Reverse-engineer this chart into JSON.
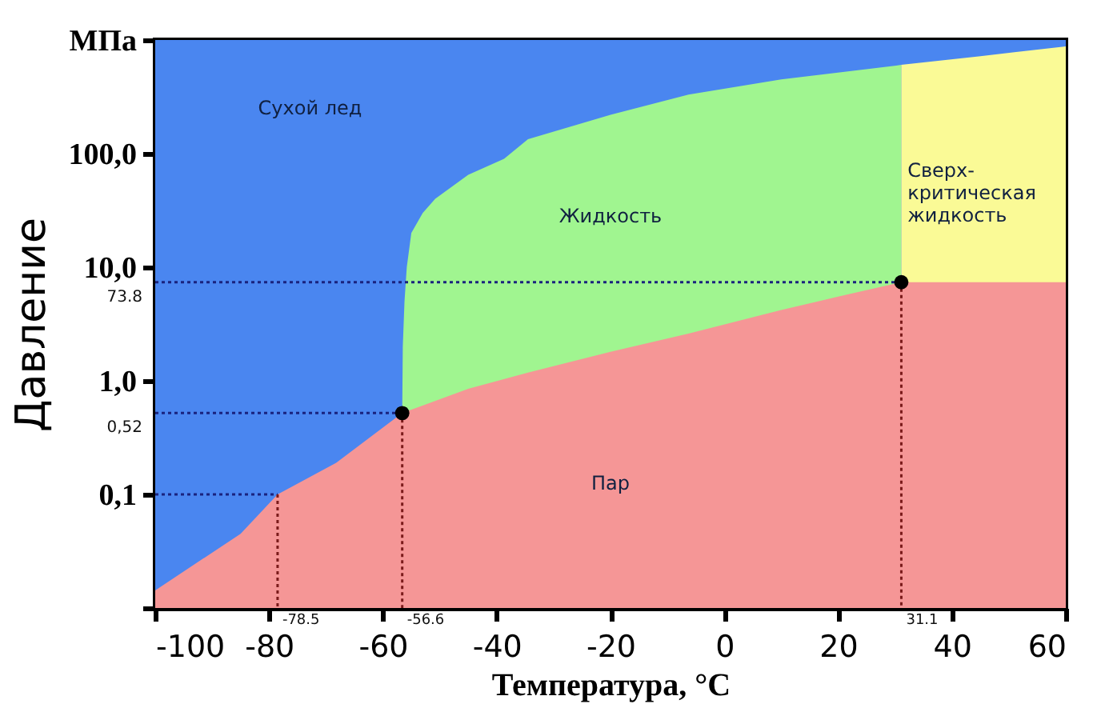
{
  "chart_data": {
    "type": "area",
    "xlabel": "Температура, °C",
    "ylabel": "Давление",
    "log": "y",
    "grid": false,
    "xlim": [
      -100,
      60
    ],
    "xticks": [
      -100,
      -80,
      -60,
      -40,
      -20,
      0,
      20,
      40,
      60
    ],
    "ylim": [
      0.01,
      1000
    ],
    "yticks": [
      {
        "value": 0.01,
        "label": null
      },
      {
        "value": 0.1,
        "label": "0,1"
      },
      {
        "value": 1,
        "label": "1,0"
      },
      {
        "value": 10,
        "label": "10,0"
      },
      {
        "value": 100,
        "label": "100,0"
      },
      {
        "value": 1000,
        "label": "МПа"
      }
    ],
    "series": [
      {
        "color": "#4a86f0",
        "x": [
          -100,
          60
        ],
        "values": [
          1000,
          1000
        ]
      },
      {
        "color": "#a0f590",
        "x": [
          -56.6,
          -56.5,
          -56.2,
          -55.8,
          -55,
          -53,
          -50.8,
          -45,
          -38.7,
          -34.5,
          -20,
          -6.3,
          10,
          30.2,
          31.1
        ],
        "values": [
          0.52,
          2,
          5,
          10,
          20,
          30,
          40,
          65,
          90,
          134,
          220,
          331,
          450,
          595,
          605
        ]
      },
      {
        "color": "#fafa96",
        "x": [
          31.1,
          45,
          60
        ],
        "values": [
          605,
          720,
          880
        ]
      },
      {
        "color": "#f59696",
        "x": [
          -100,
          -85,
          -78.5,
          -68.2,
          -56.6,
          -45,
          -34.5,
          -20,
          -6.3,
          10,
          20,
          31.1,
          60
        ],
        "values": [
          0.0143,
          0.045,
          0.1,
          0.19,
          0.52,
          0.85,
          1.18,
          1.8,
          2.6,
          4.2,
          5.5,
          7.38,
          7.38
        ]
      },
      {
        "type": "line",
        "line_style": "dotted",
        "color": "#1a237e",
        "x": [
          -100,
          -78.5
        ],
        "values": [
          0.1,
          0.1
        ]
      },
      {
        "type": "line",
        "line_style": "dotted",
        "color": "#7a1a1a",
        "x": [
          -78.5,
          -78.5
        ],
        "values": [
          0.1,
          0.01
        ]
      },
      {
        "type": "line",
        "line_style": "dotted",
        "color": "#1a237e",
        "x": [
          -100,
          -56.6
        ],
        "values": [
          0.52,
          0.52
        ]
      },
      {
        "type": "line",
        "line_style": "dotted",
        "color": "#7a1a1a",
        "x": [
          -56.6,
          -56.6
        ],
        "values": [
          0.52,
          0.01
        ]
      },
      {
        "type": "line",
        "line_style": "dotted",
        "color": "#1a237e",
        "x": [
          -100,
          31.1
        ],
        "values": [
          7.38,
          7.38
        ]
      },
      {
        "type": "line",
        "line_style": "dotted",
        "color": "#7a1a1a",
        "x": [
          31.1,
          31.1
        ],
        "values": [
          7.38,
          0.01
        ]
      },
      {
        "type": "scatter",
        "marker": "circle",
        "color": "#000000",
        "x": [
          -56.6,
          31.1
        ],
        "values": [
          0.52,
          7.38
        ]
      }
    ],
    "annotations": [
      "Сухой лед",
      "Жидкость",
      "Сверх-\nкритическая\nжидкость",
      "Пар",
      {
        "text": "-78.5",
        "x": -78.5,
        "y": 0.01
      },
      {
        "text": "-56.6",
        "x": -56.6,
        "y": 0.01
      },
      {
        "text": "31.1",
        "x": 31.1,
        "y": 0.01
      },
      {
        "text": "0,52",
        "x": -100,
        "y": 0.52
      },
      {
        "text": "73.8",
        "x": -100,
        "y": 7.38
      }
    ]
  }
}
